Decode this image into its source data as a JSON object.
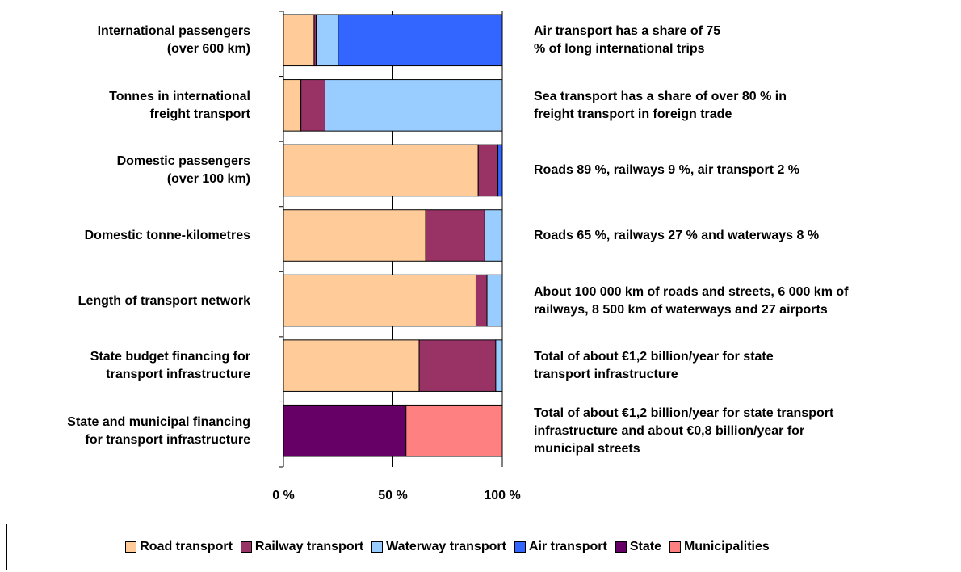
{
  "chart_data": {
    "type": "stacked-bar-horizontal",
    "categories": [
      "International passengers\n(over 600 km)",
      "Tonnes in international\nfreight transport",
      "Domestic passengers\n(over 100 km)",
      "Domestic tonne-kilometres",
      "Length of transport network",
      "State budget financing for\ntransport infrastructure",
      "State and municipal financing\nfor transport infrastructure"
    ],
    "series": [
      {
        "name": "Road transport",
        "color": "#ffcc99",
        "values": [
          14,
          8,
          89,
          65,
          88,
          62,
          null
        ]
      },
      {
        "name": "Railway transport",
        "color": "#993366",
        "values": [
          1,
          11,
          9,
          27,
          5,
          35,
          null
        ]
      },
      {
        "name": "Waterway transport",
        "color": "#99ccff",
        "values": [
          10,
          81,
          null,
          8,
          7,
          3,
          null
        ]
      },
      {
        "name": "Air transport",
        "color": "#3366ff",
        "values": [
          75,
          null,
          2,
          null,
          null,
          null,
          null
        ]
      },
      {
        "name": "State",
        "color": "#660066",
        "values": [
          null,
          null,
          null,
          null,
          null,
          null,
          56
        ]
      },
      {
        "name": "Municipalities",
        "color": "#ff8080",
        "values": [
          null,
          null,
          null,
          null,
          null,
          null,
          44
        ]
      }
    ],
    "annotations": [
      "Air transport has a share of 75\n% of long international trips",
      "Sea transport has a share of over 80 % in\nfreight transport in foreign trade",
      "Roads 89 %, railways 9 %, air transport 2 %",
      "Roads 65 %, railways 27 % and waterways 8 %",
      "About 100 000 km of roads and streets, 6 000 km of\nrailways, 8 500 km of waterways and 27 airports",
      "Total of about €1,2 billion/year for state\ntransport infrastructure",
      "Total of about €1,2 billion/year for state transport\ninfrastructure and about €0,8 billion/year for\nmunicipal streets"
    ],
    "xlim": [
      0,
      100
    ],
    "xticks": [
      {
        "value": 0,
        "label": "0 %"
      },
      {
        "value": 50,
        "label": "50 %"
      },
      {
        "value": 100,
        "label": "100 %"
      }
    ],
    "grid": true
  }
}
